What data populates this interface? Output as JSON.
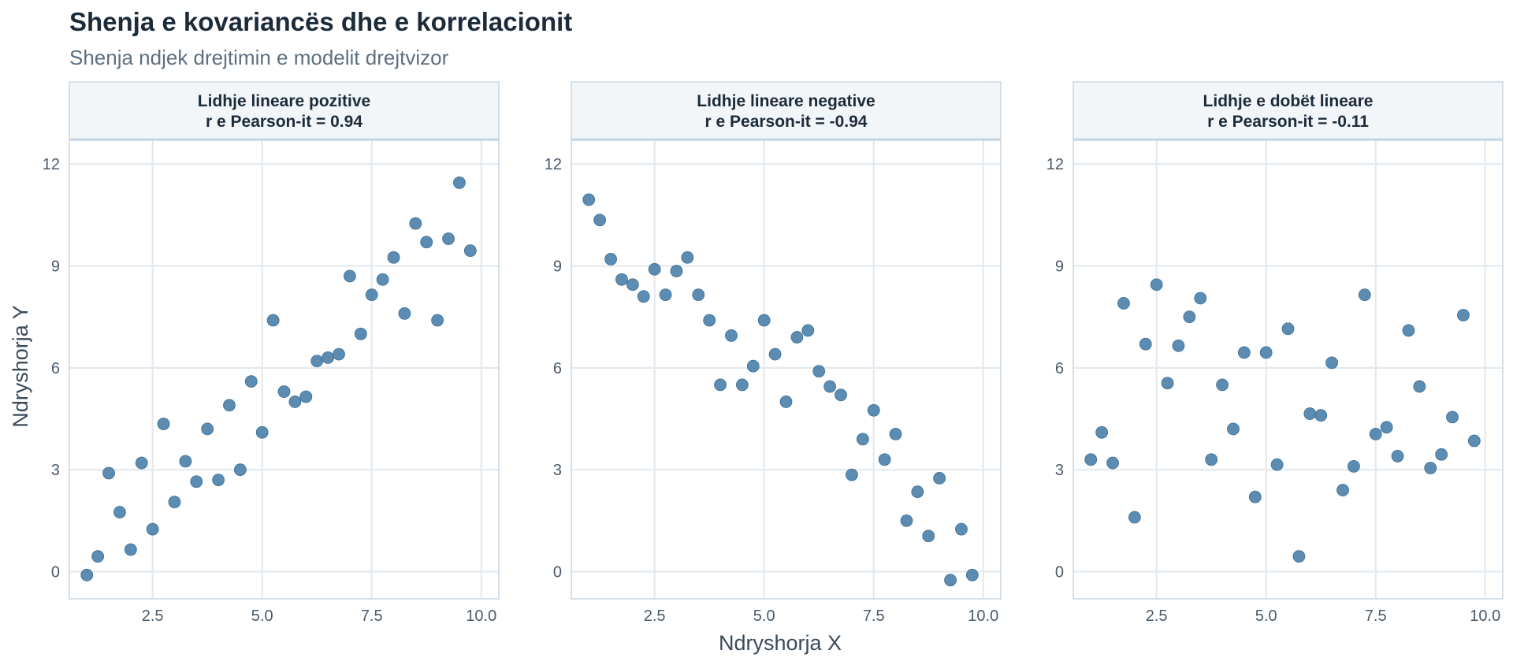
{
  "chart_data": {
    "type": "scatter",
    "title": "Shenja e kovariancës dhe e korrelacionit",
    "subtitle": "Shenja ndjek drejtimin e modelit drejtvizor",
    "xlabel": "Ndryshorja X",
    "ylabel": "Ndryshorja Y",
    "xlim": [
      0.6,
      10.4
    ],
    "ylim": [
      -0.8,
      12.7
    ],
    "xticks": [
      2.5,
      5.0,
      7.5,
      10.0
    ],
    "xtick_labels": [
      "2.5",
      "5.0",
      "7.5",
      "10.0"
    ],
    "yticks": [
      0,
      3,
      6,
      9,
      12
    ],
    "ytick_labels": [
      "0",
      "3",
      "6",
      "9",
      "12"
    ],
    "grid": true,
    "point_color": "#4a7fa8",
    "panels": [
      {
        "label_line1": "Lidhje lineare pozitive",
        "label_line2": "r e Pearson-it = 0.94",
        "points": [
          [
            1.0,
            -0.1
          ],
          [
            1.25,
            0.45
          ],
          [
            1.5,
            2.9
          ],
          [
            1.75,
            1.75
          ],
          [
            2.0,
            0.65
          ],
          [
            2.25,
            3.2
          ],
          [
            2.5,
            1.25
          ],
          [
            2.75,
            4.35
          ],
          [
            3.0,
            2.05
          ],
          [
            3.25,
            3.25
          ],
          [
            3.5,
            2.65
          ],
          [
            3.75,
            4.2
          ],
          [
            4.0,
            2.7
          ],
          [
            4.25,
            4.9
          ],
          [
            4.5,
            3.0
          ],
          [
            4.75,
            5.6
          ],
          [
            5.0,
            4.1
          ],
          [
            5.25,
            7.4
          ],
          [
            5.5,
            5.3
          ],
          [
            5.75,
            5.0
          ],
          [
            6.0,
            5.15
          ],
          [
            6.25,
            6.2
          ],
          [
            6.5,
            6.3
          ],
          [
            6.75,
            6.4
          ],
          [
            7.0,
            8.7
          ],
          [
            7.25,
            7.0
          ],
          [
            7.5,
            8.15
          ],
          [
            7.75,
            8.6
          ],
          [
            8.0,
            9.25
          ],
          [
            8.25,
            7.6
          ],
          [
            8.5,
            10.25
          ],
          [
            8.75,
            9.7
          ],
          [
            9.0,
            7.4
          ],
          [
            9.25,
            9.8
          ],
          [
            9.5,
            11.45
          ],
          [
            9.75,
            9.45
          ]
        ]
      },
      {
        "label_line1": "Lidhje lineare negative",
        "label_line2": "r e Pearson-it = -0.94",
        "points": [
          [
            1.0,
            10.95
          ],
          [
            1.25,
            10.35
          ],
          [
            1.5,
            9.2
          ],
          [
            1.75,
            8.6
          ],
          [
            2.0,
            8.45
          ],
          [
            2.25,
            8.1
          ],
          [
            2.5,
            8.9
          ],
          [
            2.75,
            8.15
          ],
          [
            3.0,
            8.85
          ],
          [
            3.25,
            9.25
          ],
          [
            3.5,
            8.15
          ],
          [
            3.75,
            7.4
          ],
          [
            4.0,
            5.5
          ],
          [
            4.25,
            6.95
          ],
          [
            4.5,
            5.5
          ],
          [
            4.75,
            6.05
          ],
          [
            5.0,
            7.4
          ],
          [
            5.25,
            6.4
          ],
          [
            5.5,
            5.0
          ],
          [
            5.75,
            6.9
          ],
          [
            6.0,
            7.1
          ],
          [
            6.25,
            5.9
          ],
          [
            6.5,
            5.45
          ],
          [
            6.75,
            5.2
          ],
          [
            7.0,
            2.85
          ],
          [
            7.25,
            3.9
          ],
          [
            7.5,
            4.75
          ],
          [
            7.75,
            3.3
          ],
          [
            8.0,
            4.05
          ],
          [
            8.25,
            1.5
          ],
          [
            8.5,
            2.35
          ],
          [
            8.75,
            1.05
          ],
          [
            9.0,
            2.75
          ],
          [
            9.25,
            -0.25
          ],
          [
            9.5,
            1.25
          ],
          [
            9.75,
            -0.1
          ]
        ]
      },
      {
        "label_line1": "Lidhje e dobët lineare",
        "label_line2": "r e Pearson-it = -0.11",
        "points": [
          [
            1.0,
            3.3
          ],
          [
            1.25,
            4.1
          ],
          [
            1.5,
            3.2
          ],
          [
            1.75,
            7.9
          ],
          [
            2.0,
            1.6
          ],
          [
            2.25,
            6.7
          ],
          [
            2.5,
            8.45
          ],
          [
            2.75,
            5.55
          ],
          [
            3.0,
            6.65
          ],
          [
            3.25,
            7.5
          ],
          [
            3.5,
            8.05
          ],
          [
            3.75,
            3.3
          ],
          [
            4.0,
            5.5
          ],
          [
            4.25,
            4.2
          ],
          [
            4.5,
            6.45
          ],
          [
            4.75,
            2.2
          ],
          [
            5.0,
            6.45
          ],
          [
            5.25,
            3.15
          ],
          [
            5.5,
            7.15
          ],
          [
            5.75,
            0.45
          ],
          [
            6.0,
            4.65
          ],
          [
            6.25,
            4.6
          ],
          [
            6.5,
            6.15
          ],
          [
            6.75,
            2.4
          ],
          [
            7.0,
            3.1
          ],
          [
            7.25,
            8.15
          ],
          [
            7.5,
            4.05
          ],
          [
            7.75,
            4.25
          ],
          [
            8.0,
            3.4
          ],
          [
            8.25,
            7.1
          ],
          [
            8.5,
            5.45
          ],
          [
            8.75,
            3.05
          ],
          [
            9.0,
            3.45
          ],
          [
            9.25,
            4.55
          ],
          [
            9.5,
            7.55
          ],
          [
            9.75,
            3.85
          ]
        ]
      }
    ]
  }
}
